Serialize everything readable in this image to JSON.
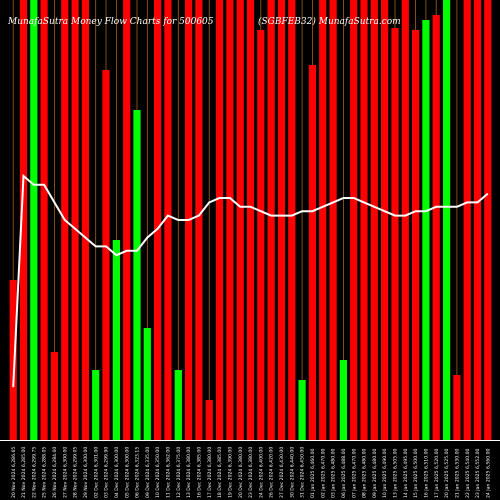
{
  "chart_data": {
    "type": "bar",
    "title_left": "MunafaSutra  Money Flow  Charts for 500605",
    "title_right": "(SGBFEB32) MunafaSutra.com",
    "colors": {
      "up": "#00ff00",
      "down": "#ff0000",
      "background": "#000000",
      "grid": "#a0621e",
      "line": "#ffffff",
      "text": "#ffffff"
    },
    "ylim": [
      0,
      440
    ],
    "grid": true,
    "categories": [
      "20 Nov 2024 6,286.65",
      "21 Nov 2024 6,285.00",
      "22 Nov 2024 6,299.75",
      "25 Nov 2024 6,288.05",
      "26 Nov 2024 6,284.00",
      "27 Nov 2024 6,300.00",
      "28 Nov 2024 6,299.05",
      "29 Nov 2024 6,300.00",
      "02 Dec 2024 6,301.00",
      "03 Dec 2024 6,299.90",
      "04 Dec 2024 6,300.00",
      "05 Dec 2024 6,300.00",
      "06 Dec 2024 6,323.15",
      "09 Dec 2024 6,335.00",
      "10 Dec 2024 6,350.00",
      "11 Dec 2024 6,362.00",
      "12 Dec 2024 6,375.00",
      "13 Dec 2024 6,380.00",
      "16 Dec 2024 6,385.00",
      "17 Dec 2024 6,380.00",
      "18 Dec 2024 6,385.00",
      "19 Dec 2024 6,390.00",
      "20 Dec 2024 6,380.00",
      "23 Dec 2024 6,380.00",
      "24 Dec 2024 6,400.00",
      "26 Dec 2024 6,420.00",
      "27 Dec 2024 6,430.00",
      "30 Dec 2024 6,440.00",
      "31 Dec 2024 6,450.00",
      "01 Jan 2025 6,460.00",
      "02 Jan 2025 6,470.00",
      "03 Jan 2025 6,480.00",
      "06 Jan 2025 6,488.00",
      "07 Jan 2025 6,470.00",
      "08 Jan 2025 6,480.00",
      "09 Jan 2025 6,480.00",
      "10 Jan 2025 6,490.00",
      "13 Jan 2025 6,505.00",
      "14 Jan 2025 6,495.00",
      "15 Jan 2025 6,500.00",
      "16 Jan 2025 6,510.00",
      "17 Jan 2025 6,520.00",
      "20 Jan 2025 6,525.00",
      "21 Jan 2025 6,530.00",
      "22 Jan 2025 6,540.00",
      "23 Jan 2025 6,552.00",
      "24 Jan 2025 6,560.00"
    ],
    "values": [
      160,
      440,
      440,
      440,
      88,
      440,
      440,
      440,
      70,
      370,
      200,
      440,
      330,
      112,
      440,
      440,
      70,
      440,
      440,
      40,
      440,
      440,
      440,
      440,
      410,
      440,
      440,
      440,
      60,
      375,
      440,
      440,
      80,
      440,
      440,
      440,
      440,
      412,
      440,
      410,
      420,
      425,
      440,
      65,
      440,
      440,
      440
    ],
    "directions": [
      "down",
      "down",
      "up",
      "down",
      "down",
      "down",
      "down",
      "down",
      "up",
      "down",
      "up",
      "down",
      "up",
      "up",
      "down",
      "down",
      "up",
      "down",
      "down",
      "down",
      "down",
      "down",
      "down",
      "down",
      "down",
      "down",
      "down",
      "down",
      "up",
      "down",
      "down",
      "down",
      "up",
      "down",
      "down",
      "down",
      "down",
      "down",
      "down",
      "down",
      "up",
      "down",
      "up",
      "down",
      "down",
      "down",
      "down"
    ],
    "line_ylim": [
      0,
      100
    ],
    "line_values": [
      12,
      60,
      58,
      58,
      54,
      50,
      48,
      46,
      44,
      44,
      42,
      43,
      43,
      46,
      48,
      51,
      50,
      50,
      51,
      54,
      55,
      55,
      53,
      53,
      52,
      51,
      51,
      51,
      52,
      52,
      53,
      54,
      55,
      55,
      54,
      53,
      52,
      51,
      51,
      52,
      52,
      53,
      53,
      53,
      54,
      54,
      56
    ]
  }
}
